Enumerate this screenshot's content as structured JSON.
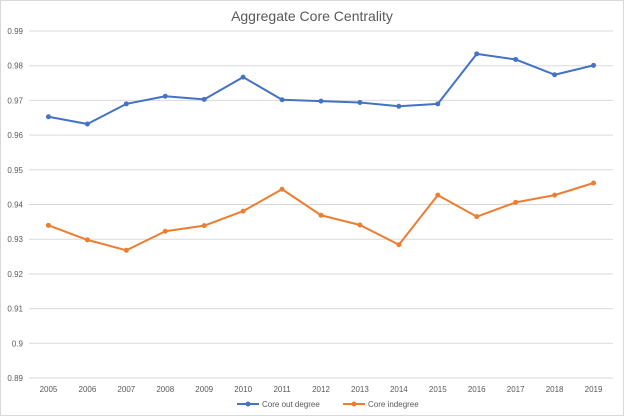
{
  "chart_data": {
    "type": "line",
    "title": "Aggregate Core Centrality",
    "xlabel": "",
    "ylabel": "",
    "categories": [
      "2005",
      "2006",
      "2007",
      "2008",
      "2009",
      "2010",
      "2011",
      "2012",
      "2013",
      "2014",
      "2015",
      "2016",
      "2017",
      "2018",
      "2019"
    ],
    "y_ticks": [
      "0.99",
      "0.98",
      "0.97",
      "0.96",
      "0.95",
      "0.94",
      "0.93",
      "0.92",
      "0.91",
      "0.9",
      "0.89"
    ],
    "ylim": [
      0.89,
      0.99
    ],
    "grid": true,
    "legend_position": "bottom",
    "series": [
      {
        "name": "Core out degree",
        "color": "#4472c4",
        "values": [
          0.9653,
          0.9632,
          0.969,
          0.9712,
          0.9703,
          0.9767,
          0.9702,
          0.9698,
          0.9694,
          0.9683,
          0.969,
          0.9834,
          0.9818,
          0.9774,
          0.9801
        ]
      },
      {
        "name": "Core indegree",
        "color": "#ed7d31",
        "values": [
          0.934,
          0.9298,
          0.9268,
          0.9323,
          0.9339,
          0.9381,
          0.9444,
          0.9369,
          0.9341,
          0.9284,
          0.9427,
          0.9365,
          0.9406,
          0.9427,
          0.9462
        ]
      }
    ]
  }
}
